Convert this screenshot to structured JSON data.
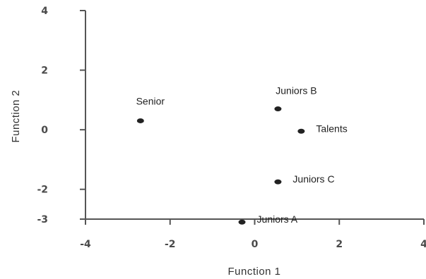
{
  "chart_data": {
    "type": "scatter",
    "title": "",
    "xlabel": "Function 1",
    "ylabel": "Function 2",
    "xlim": [
      -4,
      4
    ],
    "ylim": [
      -3,
      4
    ],
    "x_ticks": [
      -4,
      -2,
      0,
      2,
      4
    ],
    "y_ticks": [
      4,
      2,
      0,
      -2,
      -3
    ],
    "grid": false,
    "point_color": "#222222",
    "points": [
      {
        "label": "Senior",
        "x": -2.7,
        "y": 0.3
      },
      {
        "label": "Juniors B",
        "x": 0.55,
        "y": 0.7
      },
      {
        "label": "Talents",
        "x": 1.1,
        "y": -0.05
      },
      {
        "label": "Juniors C",
        "x": 0.55,
        "y": -1.75
      },
      {
        "label": "Juniors A",
        "x": -0.3,
        "y": -3.1
      }
    ]
  }
}
